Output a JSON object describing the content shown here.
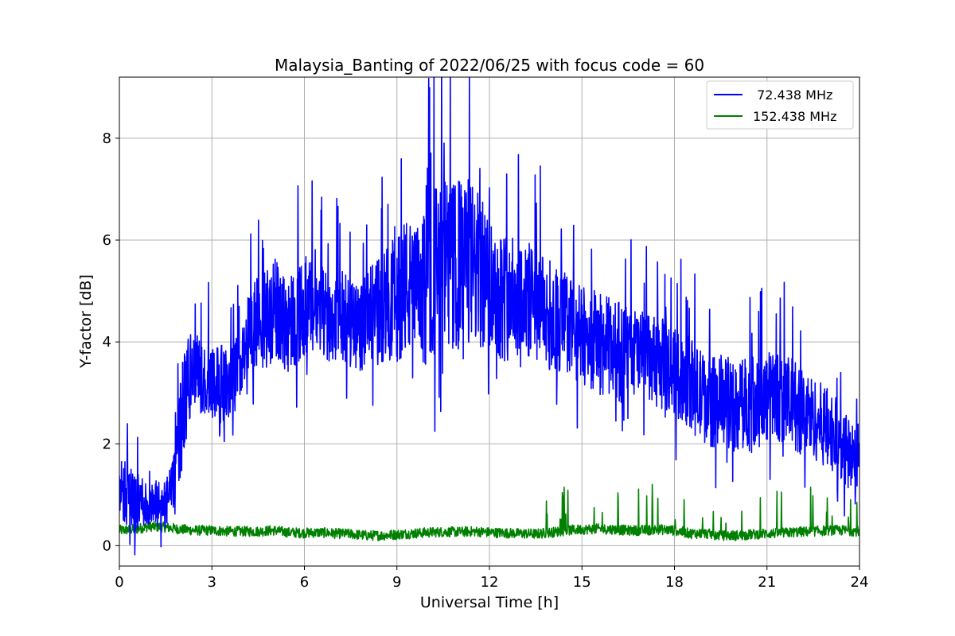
{
  "chart_data": {
    "type": "line",
    "title": "Malaysia_Banting of 2022/06/25 with focus code = 60",
    "xlabel": "Universal Time [h]",
    "ylabel": "Y-factor [dB]",
    "xlim": [
      0,
      24
    ],
    "ylim": [
      -0.4,
      9.2
    ],
    "xticks": [
      0,
      3,
      6,
      9,
      12,
      15,
      18,
      21,
      24
    ],
    "xtick_labels": [
      "0",
      "3",
      "6",
      "9",
      "12",
      "15",
      "18",
      "21",
      "24"
    ],
    "yticks": [
      0,
      2,
      4,
      6,
      8
    ],
    "ytick_labels": [
      "0",
      "2",
      "4",
      "6",
      "8"
    ],
    "grid": true,
    "legend_position": "top-right",
    "series": [
      {
        "name": " 72.438 MHz",
        "color": "#0000ff",
        "x": [
          0,
          0.25,
          0.5,
          0.75,
          1,
          1.25,
          1.5,
          1.75,
          2,
          2.25,
          2.5,
          2.75,
          3,
          3.25,
          3.5,
          3.75,
          4,
          4.25,
          4.5,
          4.75,
          5,
          5.25,
          5.5,
          5.75,
          6,
          6.25,
          6.5,
          6.75,
          7,
          7.25,
          7.5,
          7.75,
          8,
          8.25,
          8.5,
          8.75,
          9,
          9.25,
          9.5,
          9.75,
          10,
          10.25,
          10.5,
          10.75,
          11,
          11.25,
          11.5,
          11.75,
          12,
          12.25,
          12.5,
          12.75,
          13,
          13.25,
          13.5,
          13.75,
          14,
          14.25,
          14.5,
          14.75,
          15,
          15.25,
          15.5,
          15.75,
          16,
          16.25,
          16.5,
          16.75,
          17,
          17.25,
          17.5,
          17.75,
          18,
          18.25,
          18.5,
          18.75,
          19,
          19.25,
          19.5,
          19.75,
          20,
          20.25,
          20.5,
          20.75,
          21,
          21.25,
          21.5,
          21.75,
          22,
          22.25,
          22.5,
          22.75,
          23,
          23.25,
          23.5,
          23.75,
          24
        ],
        "y": [
          1.0,
          1.1,
          0.8,
          0.9,
          0.7,
          0.8,
          0.8,
          1.2,
          2.4,
          3.3,
          3.4,
          3.2,
          3.3,
          3.2,
          3.1,
          3.3,
          3.9,
          4.2,
          4.4,
          4.5,
          4.6,
          4.5,
          4.4,
          4.5,
          4.7,
          4.6,
          4.6,
          4.5,
          4.5,
          4.5,
          4.4,
          4.3,
          4.4,
          4.6,
          4.6,
          4.8,
          5.0,
          5.1,
          5.0,
          4.9,
          5.1,
          5.4,
          5.6,
          5.4,
          5.5,
          5.6,
          5.5,
          5.3,
          5.2,
          5.0,
          4.9,
          4.9,
          4.9,
          4.8,
          4.7,
          4.6,
          4.5,
          4.4,
          4.4,
          4.2,
          4.1,
          4.1,
          4.0,
          3.9,
          3.9,
          3.8,
          3.8,
          3.8,
          3.7,
          3.6,
          3.6,
          3.5,
          3.4,
          3.3,
          3.2,
          3.0,
          2.9,
          2.8,
          2.9,
          2.8,
          2.7,
          2.8,
          2.9,
          2.8,
          2.9,
          3.0,
          2.9,
          2.8,
          2.7,
          2.6,
          2.5,
          2.4,
          2.3,
          2.1,
          1.9,
          1.7,
          1.6
        ],
        "amplitude": [
          0.6,
          0.7,
          0.6,
          0.5,
          0.5,
          0.5,
          0.5,
          0.5,
          1.1,
          1.0,
          0.8,
          0.7,
          0.8,
          0.8,
          0.7,
          0.7,
          0.8,
          0.9,
          0.9,
          1.0,
          1.1,
          1.0,
          1.0,
          1.0,
          1.0,
          1.0,
          0.9,
          0.9,
          0.9,
          0.9,
          0.9,
          0.9,
          0.9,
          1.0,
          1.1,
          1.2,
          1.4,
          1.4,
          1.3,
          1.4,
          1.6,
          1.7,
          1.7,
          1.7,
          1.7,
          1.7,
          1.6,
          1.5,
          1.4,
          1.3,
          1.3,
          1.2,
          1.2,
          1.2,
          1.1,
          1.1,
          1.1,
          1.1,
          1.0,
          1.0,
          1.0,
          1.0,
          1.0,
          1.0,
          1.0,
          1.0,
          0.9,
          0.9,
          0.9,
          0.9,
          0.9,
          0.9,
          0.9,
          0.9,
          0.9,
          0.9,
          0.9,
          0.9,
          0.9,
          0.9,
          0.9,
          0.9,
          0.9,
          0.9,
          0.9,
          0.9,
          0.9,
          0.9,
          0.9,
          0.9,
          0.8,
          0.8,
          0.8,
          0.8,
          0.8,
          0.7,
          0.6
        ]
      },
      {
        "name": "152.438 MHz",
        "color": "#008000",
        "x": [
          0,
          0.5,
          1,
          1.5,
          2,
          2.5,
          3,
          3.5,
          4,
          4.5,
          5,
          5.5,
          6,
          6.5,
          7,
          7.5,
          8,
          8.5,
          9,
          9.5,
          10,
          10.5,
          11,
          11.5,
          12,
          12.5,
          13,
          13.5,
          14,
          14.5,
          15,
          15.5,
          16,
          16.5,
          17,
          17.5,
          18,
          18.5,
          19,
          19.5,
          20,
          20.5,
          21,
          21.5,
          22,
          22.5,
          23,
          23.5,
          24
        ],
        "y": [
          0.3,
          0.32,
          0.38,
          0.36,
          0.32,
          0.3,
          0.3,
          0.28,
          0.28,
          0.28,
          0.3,
          0.26,
          0.25,
          0.26,
          0.24,
          0.23,
          0.2,
          0.2,
          0.22,
          0.24,
          0.26,
          0.27,
          0.27,
          0.28,
          0.26,
          0.25,
          0.24,
          0.23,
          0.26,
          0.3,
          0.32,
          0.33,
          0.32,
          0.3,
          0.3,
          0.32,
          0.3,
          0.24,
          0.24,
          0.2,
          0.2,
          0.22,
          0.24,
          0.25,
          0.27,
          0.28,
          0.3,
          0.3,
          0.28
        ],
        "amplitude": 0.1
      }
    ]
  }
}
